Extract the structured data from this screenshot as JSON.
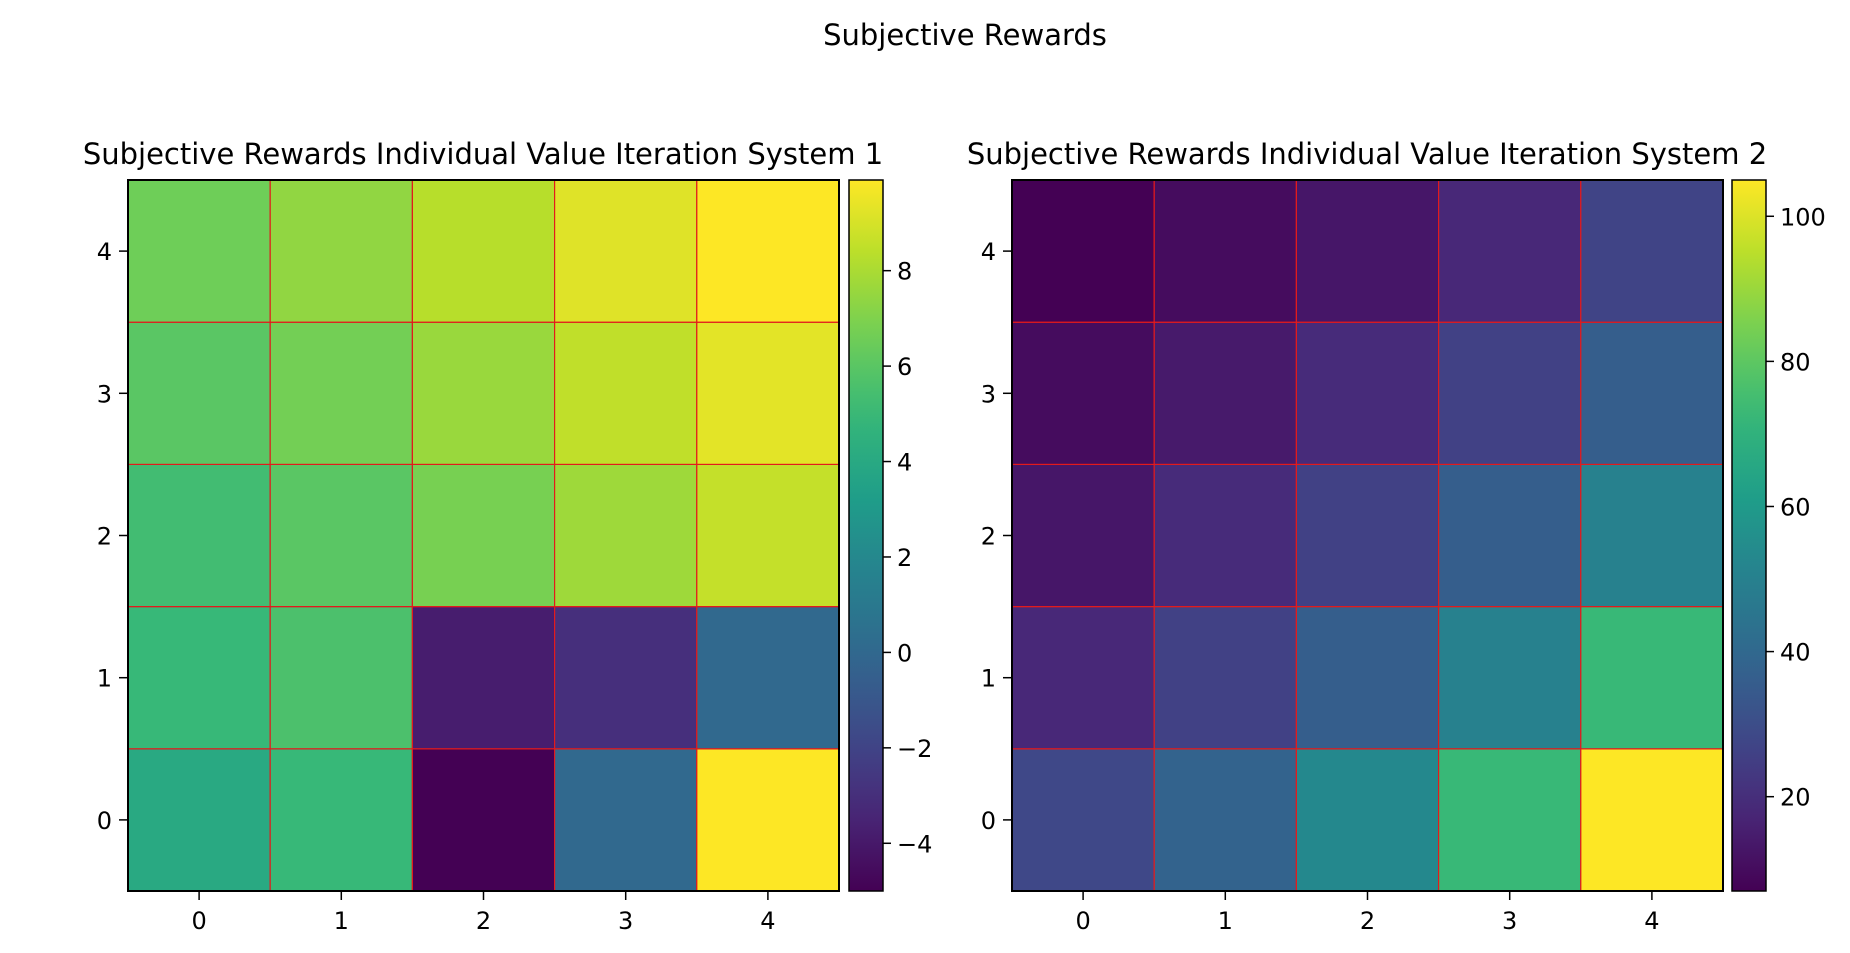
{
  "figure": {
    "suptitle": "Subjective Rewards"
  },
  "chart_data": [
    {
      "type": "heatmap",
      "title": "Subjective Rewards Individual Value Iteration System 1",
      "x": [
        0,
        1,
        2,
        3,
        4
      ],
      "y": [
        0,
        1,
        2,
        3,
        4
      ],
      "x_tick_labels": [
        "0",
        "1",
        "2",
        "3",
        "4"
      ],
      "y_tick_labels": [
        "0",
        "1",
        "2",
        "3",
        "4"
      ],
      "values": [
        [
          4.0,
          5.0,
          -5.0,
          0.0,
          9.9
        ],
        [
          5.0,
          5.6,
          -3.8,
          -3.0,
          0.0
        ],
        [
          5.3,
          6.0,
          6.8,
          7.7,
          8.6
        ],
        [
          6.0,
          6.7,
          7.6,
          8.5,
          9.3
        ],
        [
          6.6,
          7.4,
          8.3,
          9.2,
          9.9
        ]
      ],
      "value_range": [
        -5.0,
        9.9
      ],
      "colormap": "viridis",
      "cell_edge_color": "#e31a1c",
      "colorbar": {
        "ticks": [
          -4,
          -2,
          0,
          2,
          4,
          6,
          8
        ],
        "tick_labels": [
          "−4",
          "−2",
          "0",
          "2",
          "4",
          "6",
          "8"
        ]
      },
      "origin": "lower",
      "grid": false
    },
    {
      "type": "heatmap",
      "title": "Subjective Rewards Individual Value Iteration System 2",
      "x": [
        0,
        1,
        2,
        3,
        4
      ],
      "y": [
        0,
        1,
        2,
        3,
        4
      ],
      "x_tick_labels": [
        "0",
        "1",
        "2",
        "3",
        "4"
      ],
      "y_tick_labels": [
        "0",
        "1",
        "2",
        "3",
        "4"
      ],
      "values": [
        [
          28,
          38,
          53,
          73,
          105
        ],
        [
          18,
          26,
          36,
          50,
          73
        ],
        [
          13,
          19,
          26,
          36,
          50
        ],
        [
          10,
          14,
          19,
          26,
          36
        ],
        [
          7,
          10,
          13,
          18,
          27
        ]
      ],
      "value_range": [
        7,
        105
      ],
      "colormap": "viridis",
      "cell_edge_color": "#e31a1c",
      "colorbar": {
        "ticks": [
          20,
          40,
          60,
          80,
          100
        ],
        "tick_labels": [
          "20",
          "40",
          "60",
          "80",
          "100"
        ]
      },
      "origin": "lower",
      "grid": false
    }
  ]
}
